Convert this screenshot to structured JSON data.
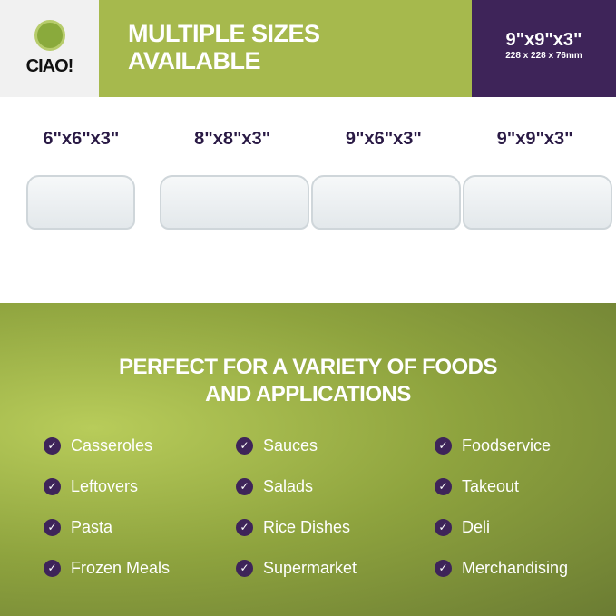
{
  "brand": {
    "name": "CIAO!"
  },
  "header": {
    "title_line1": "MULTIPLE SIZES",
    "title_line2": "AVAILABLE",
    "featured_size": "9\"x9\"x3\"",
    "featured_metric": "228 x 228 x 76mm"
  },
  "sizes": [
    "6\"x6\"x3\"",
    "8\"x8\"x3\"",
    "9\"x6\"x3\"",
    "9\"x9\"x3\""
  ],
  "uses": {
    "title_line1": "PERFECT FOR A VARIETY OF FOODS",
    "title_line2": "AND APPLICATIONS",
    "items": [
      "Casseroles",
      "Sauces",
      "Foodservice",
      "Leftovers",
      "Salads",
      "Takeout",
      "Pasta",
      "Rice Dishes",
      "Deli",
      "Frozen Meals",
      "Supermarket",
      "Merchandising"
    ]
  },
  "colors": {
    "green": "#a6b94d",
    "purple": "#3e2459"
  }
}
